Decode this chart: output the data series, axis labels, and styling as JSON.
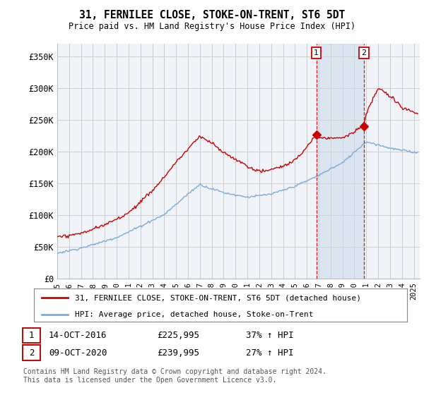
{
  "title": "31, FERNILEE CLOSE, STOKE-ON-TRENT, ST6 5DT",
  "subtitle": "Price paid vs. HM Land Registry's House Price Index (HPI)",
  "ylabel_ticks": [
    "£0",
    "£50K",
    "£100K",
    "£150K",
    "£200K",
    "£250K",
    "£300K",
    "£350K"
  ],
  "ytick_values": [
    0,
    50000,
    100000,
    150000,
    200000,
    250000,
    300000,
    350000
  ],
  "ylim": [
    0,
    370000
  ],
  "xlim_start": 1995.0,
  "xlim_end": 2025.5,
  "line1_color": "#cc0000",
  "line2_color": "#7aabdb",
  "line1_label": "31, FERNILEE CLOSE, STOKE-ON-TRENT, ST6 5DT (detached house)",
  "line2_label": "HPI: Average price, detached house, Stoke-on-Trent",
  "marker1_date": 2016.79,
  "marker1_price": 225995,
  "marker1_label": "1",
  "marker1_text": "14-OCT-2016",
  "marker1_amount": "£225,995",
  "marker1_pct": "37% ↑ HPI",
  "marker2_date": 2020.79,
  "marker2_price": 239995,
  "marker2_label": "2",
  "marker2_text": "09-OCT-2020",
  "marker2_amount": "£239,995",
  "marker2_pct": "27% ↑ HPI",
  "copyright_text": "Contains HM Land Registry data © Crown copyright and database right 2024.\nThis data is licensed under the Open Government Licence v3.0.",
  "bg_color": "#ffffff",
  "plot_bg_color": "#f0f4f8",
  "grid_color": "#cccccc",
  "vline_color": "#cc0000",
  "shade_color": "#c8d8ea"
}
